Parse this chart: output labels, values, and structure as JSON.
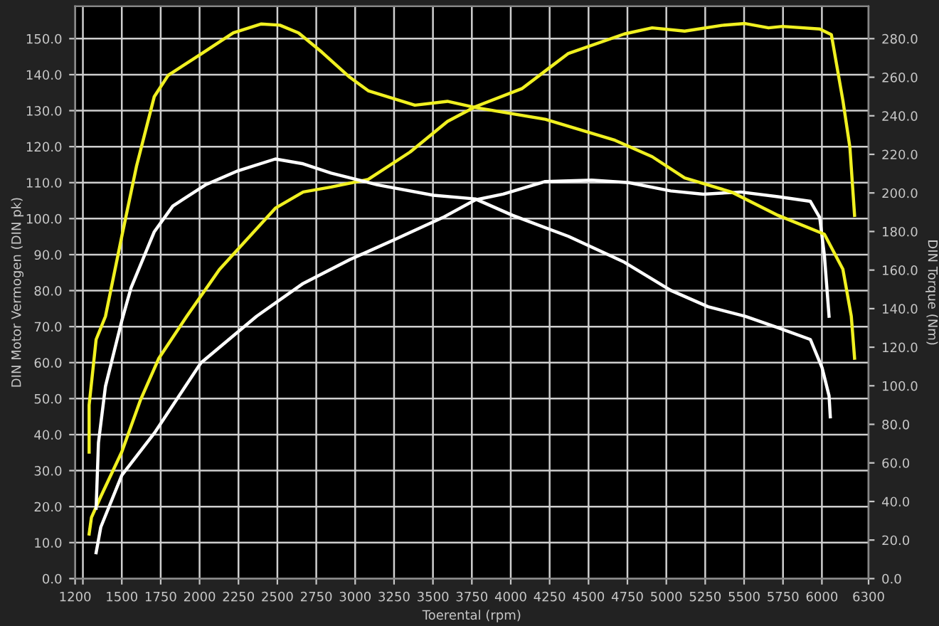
{
  "chart_data": {
    "type": "line",
    "xlabel": "Toerental (rpm)",
    "ylabel": "DIN Motor Vermogen (DIN pk)",
    "y2label": "DIN Torque (Nm)",
    "xlim": [
      1200,
      6300
    ],
    "xticks": [
      1200,
      {
        "value": 1250,
        "label": null
      },
      1500,
      1750,
      2000,
      2250,
      2500,
      2750,
      3000,
      3250,
      3500,
      3750,
      4000,
      4250,
      4500,
      4750,
      5000,
      5250,
      5500,
      5750,
      6000,
      6300
    ],
    "ylim": [
      0,
      159
    ],
    "yticks": [
      {
        "value": 0,
        "label": "0.0"
      },
      {
        "value": 10,
        "label": "10.0"
      },
      {
        "value": 20,
        "label": "20.0"
      },
      {
        "value": 30,
        "label": "30.0"
      },
      {
        "value": 40,
        "label": "40.0"
      },
      {
        "value": 50,
        "label": "50.0"
      },
      {
        "value": 60,
        "label": "60.0"
      },
      {
        "value": 70,
        "label": "70.0"
      },
      {
        "value": 80,
        "label": "80.0"
      },
      {
        "value": 90,
        "label": "90.0"
      },
      {
        "value": 100,
        "label": "100.0"
      },
      {
        "value": 110,
        "label": "110.0"
      },
      {
        "value": 120,
        "label": "120.0"
      },
      {
        "value": 130,
        "label": "130.0"
      },
      {
        "value": 140,
        "label": "140.0"
      },
      {
        "value": 150,
        "label": "150.0"
      }
    ],
    "y2lim": [
      0,
      296.8
    ],
    "y2ticks": [
      {
        "value": 0,
        "label": "0.0"
      },
      {
        "value": 20,
        "label": "20.0"
      },
      {
        "value": 40,
        "label": "40.0"
      },
      {
        "value": 60,
        "label": "60.0"
      },
      {
        "value": 80,
        "label": "80.0"
      },
      {
        "value": 100,
        "label": "100.0"
      },
      {
        "value": 120,
        "label": "120.0"
      },
      {
        "value": 140,
        "label": "140.0"
      },
      {
        "value": 160,
        "label": "160.0"
      },
      {
        "value": 180,
        "label": "180.0"
      },
      {
        "value": 200,
        "label": "200.0"
      },
      {
        "value": 220,
        "label": "220.0"
      },
      {
        "value": 240,
        "label": "240.0"
      },
      {
        "value": 260,
        "label": "260.0"
      },
      {
        "value": 280,
        "label": "280.0"
      }
    ],
    "grid": true,
    "marker": "none",
    "line_style": "solid",
    "series": [
      {
        "color": "#f0f020",
        "axis": "y2",
        "x": [
          1290,
          1290,
          1335,
          1395,
          1500,
          1595,
          1709,
          1798,
          2008,
          2217,
          2397,
          2516,
          2636,
          2786,
          2965,
          3084,
          3384,
          3593,
          3772,
          4221,
          4670,
          4909,
          5118,
          5417,
          5717,
          6016,
          6135,
          6189,
          6210
        ],
        "values": [
          65.6,
          90,
          124,
          136,
          177.5,
          214,
          250,
          261,
          272,
          283,
          287.6,
          287,
          283,
          273,
          260,
          253,
          245.5,
          247.5,
          244.3,
          238.2,
          227.3,
          218.8,
          207.8,
          200.5,
          188.4,
          178.6,
          160.4,
          136,
          114.3
        ]
      },
      {
        "color": "#f0f020",
        "x": [
          1290,
          1305,
          1365,
          1500,
          1619,
          1738,
          1918,
          2128,
          2487,
          2666,
          2846,
          3084,
          3353,
          3593,
          3772,
          4071,
          4371,
          4730,
          4909,
          5118,
          5358,
          5507,
          5657,
          5746,
          5986,
          6061,
          6135,
          6180,
          6210
        ],
        "values": [
          12.4,
          17.0,
          22.8,
          35.2,
          49.5,
          61.2,
          72.9,
          85.9,
          102.9,
          107.4,
          108.8,
          110.9,
          118.5,
          127.0,
          131.1,
          136.1,
          145.9,
          151.3,
          153.0,
          152.1,
          153.7,
          154.2,
          153.0,
          153.4,
          152.7,
          151.1,
          132.8,
          119.8,
          100.9
        ]
      },
      {
        "color": "#ffffff",
        "axis": "y2",
        "x": [
          1335,
          1350,
          1395,
          1500,
          1559,
          1709,
          1828,
          2038,
          2247,
          2487,
          2666,
          2846,
          3144,
          3503,
          3772,
          4011,
          4371,
          4730,
          5028,
          5268,
          5507,
          5717,
          5926,
          6001,
          6046,
          6054
        ],
        "values": [
          36.5,
          70.5,
          99.7,
          133.7,
          150.7,
          179.9,
          193.2,
          204.2,
          211.5,
          217.6,
          215.1,
          210.3,
          204.2,
          198.8,
          196.9,
          188.4,
          177.5,
          164.1,
          149.5,
          141,
          136,
          130.1,
          124,
          109.4,
          94.8,
          83.9
        ]
      },
      {
        "color": "#ffffff",
        "x": [
          1335,
          1365,
          1500,
          1709,
          2008,
          2367,
          2666,
          2965,
          3264,
          3563,
          3772,
          3951,
          4221,
          4520,
          4760,
          5028,
          5238,
          5477,
          5717,
          5926,
          5986,
          6016,
          6046
        ],
        "values": [
          7.2,
          14.3,
          28.7,
          40.4,
          59.9,
          72.9,
          82.0,
          88.6,
          94.4,
          100.3,
          105.2,
          106.8,
          110.3,
          110.7,
          110.0,
          107.7,
          106.8,
          107.4,
          106.1,
          104.8,
          100.3,
          89.8,
          72.9
        ]
      }
    ]
  }
}
